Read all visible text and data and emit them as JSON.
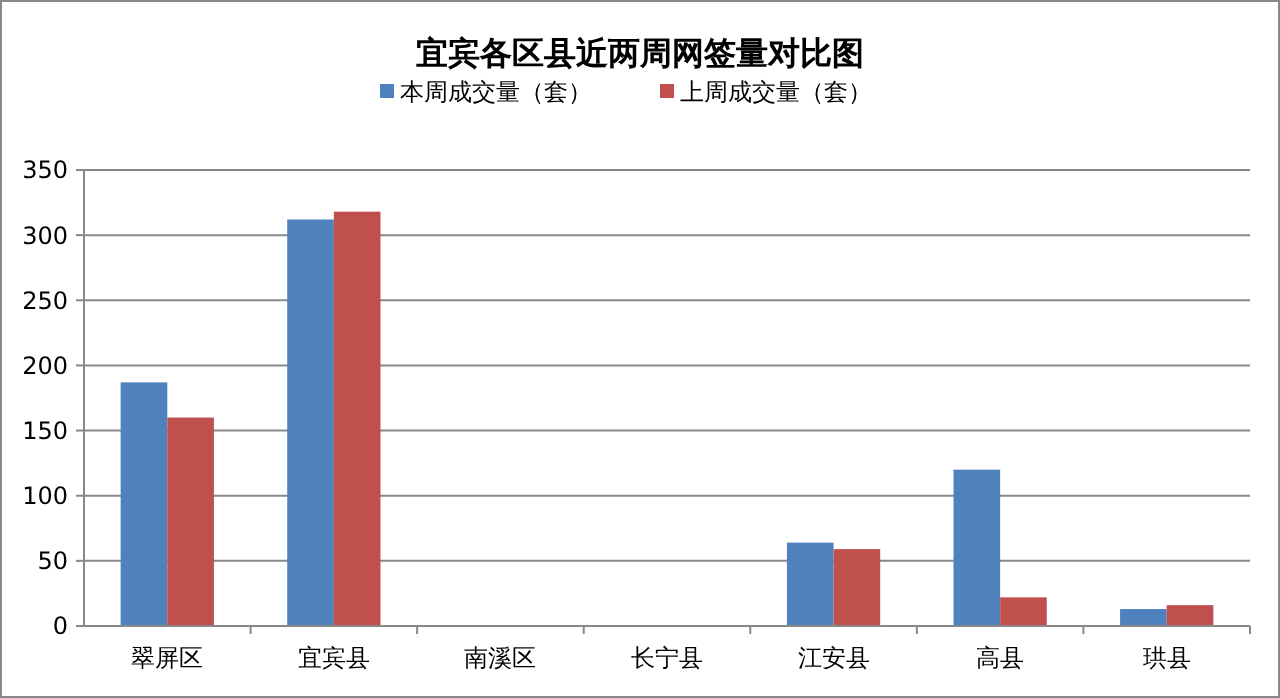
{
  "chart_data": {
    "type": "bar",
    "title": "宜宾各区县近两周网签量对比图",
    "categories": [
      "翠屏区",
      "宜宾县",
      "南溪区",
      "长宁县",
      "江安县",
      "高县",
      "珙县"
    ],
    "series": [
      {
        "name": "本周成交量（套）",
        "color": "#4f81bd",
        "values": [
          187,
          312,
          0,
          0,
          64,
          120,
          13
        ]
      },
      {
        "name": "上周成交量（套）",
        "color": "#c0504d",
        "values": [
          160,
          318,
          0,
          0,
          59,
          22,
          16
        ]
      }
    ],
    "ylim": [
      0,
      350
    ],
    "yticks": [
      0,
      50,
      100,
      150,
      200,
      250,
      300,
      350
    ],
    "grid": "y",
    "legend": "top"
  }
}
